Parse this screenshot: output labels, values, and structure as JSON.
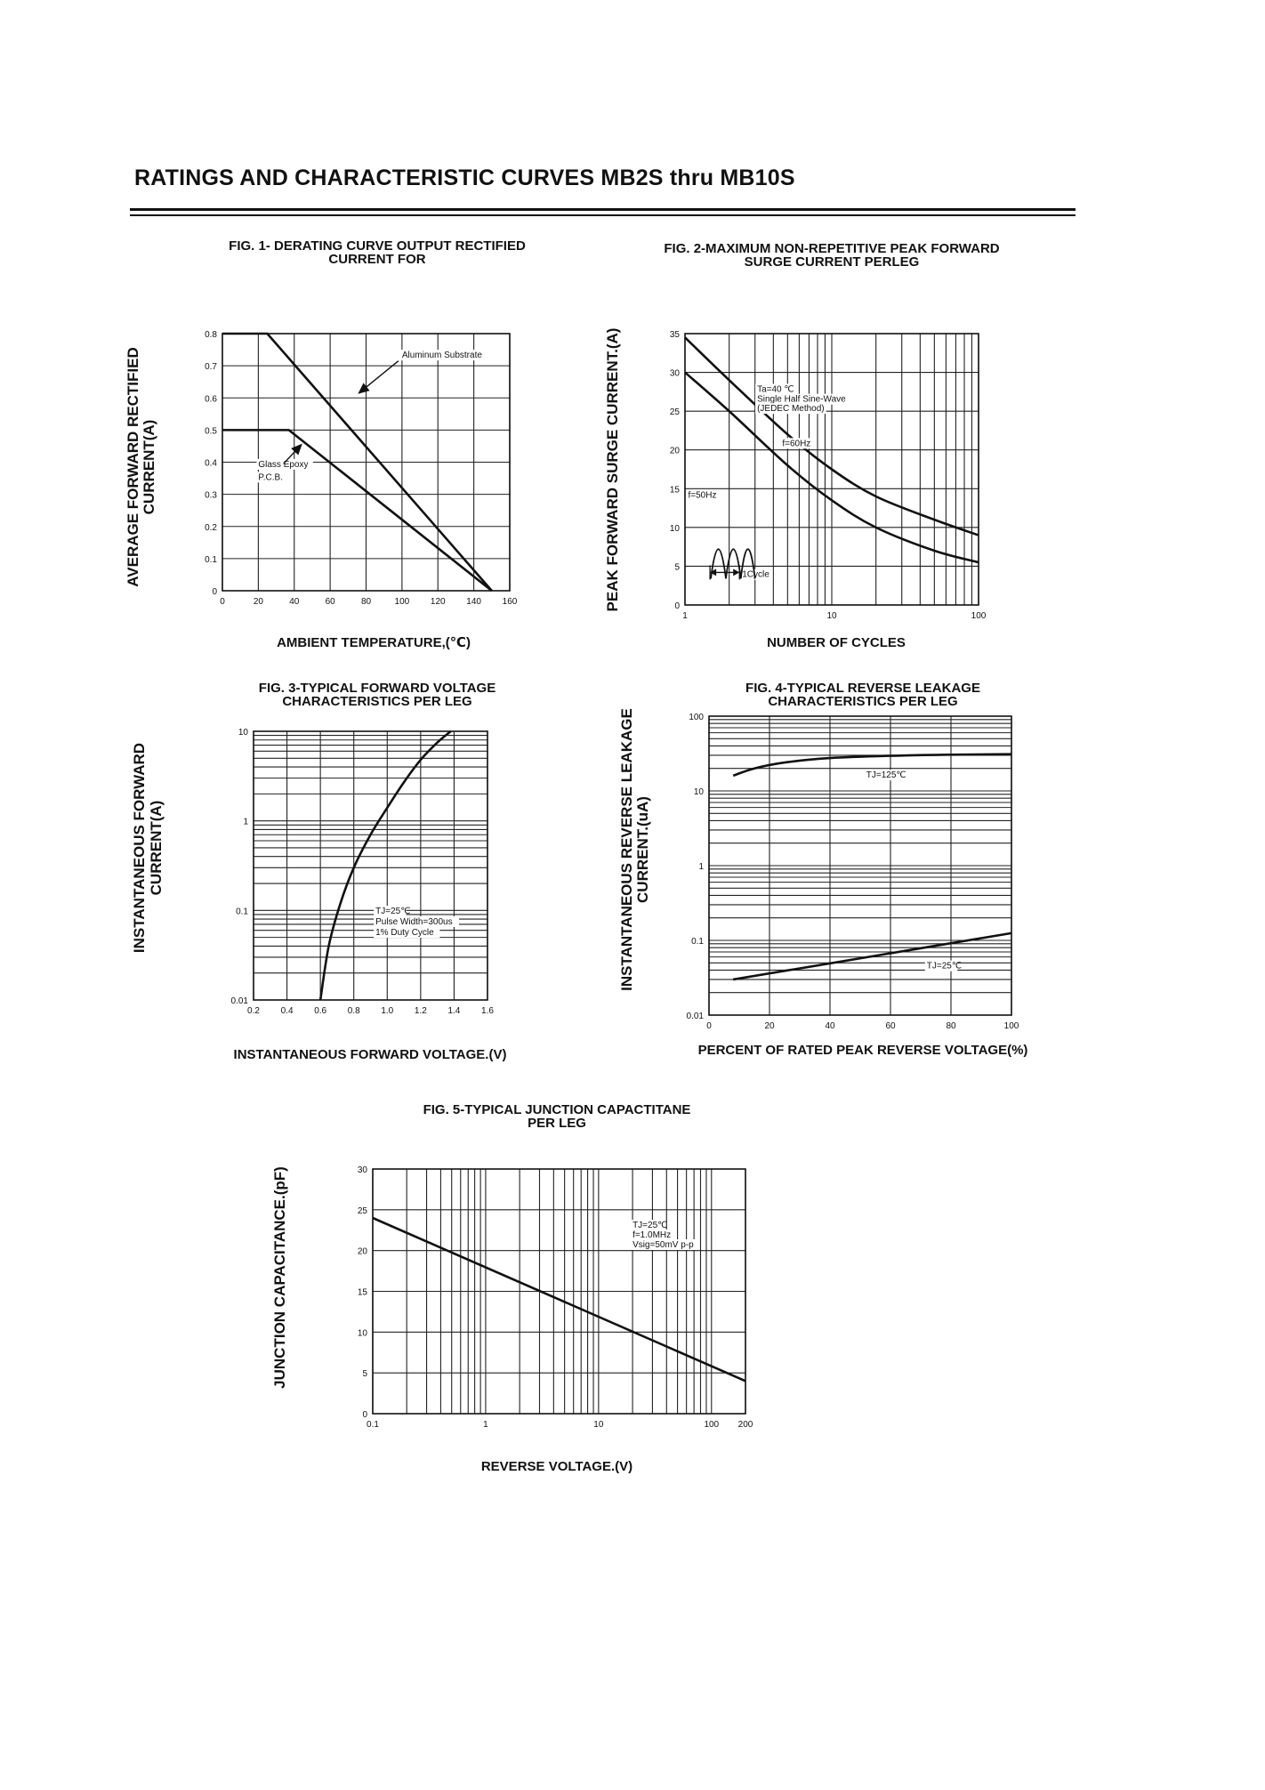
{
  "page": {
    "title": "RATINGS AND CHARACTERISTIC CURVES  MB2S  thru  MB10S"
  },
  "chart_data": [
    {
      "id": "fig1",
      "type": "line",
      "title": [
        "FIG. 1- DERATING CURVE OUTPUT RECTIFIED",
        "CURRENT FOR"
      ],
      "xlabel": "AMBIENT TEMPERATURE,(℃)",
      "ylabel": [
        "AVERAGE FORWARD RECTIFIED",
        "CURRENT(A)"
      ],
      "x_ticks": [
        {
          "v": 0,
          "t": "0"
        },
        {
          "v": 20,
          "t": "20"
        },
        {
          "v": 40,
          "t": "40"
        },
        {
          "v": 60,
          "t": "60"
        },
        {
          "v": 80,
          "t": "80"
        },
        {
          "v": 100,
          "t": "100"
        },
        {
          "v": 120,
          "t": "120"
        },
        {
          "v": 140,
          "t": "140"
        },
        {
          "v": 160,
          "t": "160"
        }
      ],
      "y_ticks": [
        {
          "v": 0,
          "t": "0"
        },
        {
          "v": 0.1,
          "t": "0.1"
        },
        {
          "v": 0.2,
          "t": "0.2"
        },
        {
          "v": 0.3,
          "t": "0.3"
        },
        {
          "v": 0.4,
          "t": "0.4"
        },
        {
          "v": 0.5,
          "t": "0.5"
        },
        {
          "v": 0.6,
          "t": "0.6"
        },
        {
          "v": 0.7,
          "t": "0.7"
        },
        {
          "v": 0.8,
          "t": "0.8"
        }
      ],
      "xlim": [
        0,
        160
      ],
      "ylim": [
        0,
        0.8
      ],
      "grid": true,
      "series": [
        {
          "x": [
            0,
            25,
            150
          ],
          "y": [
            0.8,
            0.8,
            0
          ]
        },
        {
          "x": [
            0,
            37,
            150
          ],
          "y": [
            0.5,
            0.5,
            0
          ]
        }
      ],
      "annotations": [
        {
          "text": "Aluminum Substrate",
          "x": 100,
          "y": 0.725
        },
        {
          "text": "Glass Epoxy",
          "x": 20,
          "y": 0.385
        },
        {
          "text": "P.C.B.",
          "x": 20,
          "y": 0.345
        }
      ]
    },
    {
      "id": "fig2",
      "type": "line",
      "title": [
        "FIG. 2-MAXIMUM NON-REPETITIVE PEAK FORWARD",
        "SURGE CURRENT PERLEG"
      ],
      "xlabel": "NUMBER OF CYCLES",
      "ylabel": [
        "PEAK  FORWARD SURGE CURRENT.(A)"
      ],
      "x_scale": "log",
      "x_ticks": [
        {
          "v": 1,
          "t": "1"
        },
        {
          "v": 10,
          "t": "10"
        },
        {
          "v": 100,
          "t": "100"
        }
      ],
      "y_ticks": [
        {
          "v": 0,
          "t": "0"
        },
        {
          "v": 5,
          "t": "5"
        },
        {
          "v": 10,
          "t": "10"
        },
        {
          "v": 15,
          "t": "15"
        },
        {
          "v": 20,
          "t": "20"
        },
        {
          "v": 25,
          "t": "25"
        },
        {
          "v": 30,
          "t": "30"
        },
        {
          "v": 35,
          "t": "35"
        }
      ],
      "xlim": [
        1,
        100
      ],
      "ylim": [
        0,
        35
      ],
      "grid": true,
      "series": [
        {
          "x": [
            1,
            2,
            5,
            10,
            20,
            50,
            100
          ],
          "y": [
            34.5,
            29,
            22,
            17.5,
            14,
            11,
            9
          ]
        },
        {
          "x": [
            1,
            2,
            5,
            10,
            20,
            50,
            100
          ],
          "y": [
            30,
            25,
            18,
            13.5,
            10,
            7,
            5.5
          ]
        }
      ],
      "annotations": [
        {
          "text": "Ta=40 ℃",
          "x": 3.1,
          "y": 27.5
        },
        {
          "text": "Single Half Sine-Wave",
          "x": 3.1,
          "y": 26.2
        },
        {
          "text": "(JEDEC Method)",
          "x": 3.1,
          "y": 25.0
        },
        {
          "text": "f=60Hz",
          "x": 4.6,
          "y": 20.5
        },
        {
          "text": "f=50Hz",
          "x": 1.05,
          "y": 13.8
        },
        {
          "text": "1Cycle",
          "x": 2.45,
          "y": 3.6
        }
      ]
    },
    {
      "id": "fig3",
      "type": "line",
      "title": [
        "FIG. 3-TYPICAL FORWARD VOLTAGE",
        "CHARACTERISTICS PER LEG"
      ],
      "xlabel": "INSTANTANEOUS FORWARD VOLTAGE.(V)",
      "ylabel": [
        "INSTANTANEOUS FORWARD",
        "CURRENT(A)"
      ],
      "y_scale": "log",
      "x_ticks": [
        {
          "v": 0.2,
          "t": "0.2"
        },
        {
          "v": 0.4,
          "t": "0.4"
        },
        {
          "v": 0.6,
          "t": "0.6"
        },
        {
          "v": 0.8,
          "t": "0.8"
        },
        {
          "v": 1.0,
          "t": "1.0"
        },
        {
          "v": 1.2,
          "t": "1.2"
        },
        {
          "v": 1.4,
          "t": "1.4"
        },
        {
          "v": 1.6,
          "t": "1.6"
        }
      ],
      "y_ticks": [
        {
          "v": 0.01,
          "t": "0.01"
        },
        {
          "v": 0.1,
          "t": "0.1"
        },
        {
          "v": 1,
          "t": "1"
        },
        {
          "v": 10,
          "t": "10"
        }
      ],
      "xlim": [
        0.2,
        1.6
      ],
      "ylim": [
        0.01,
        10
      ],
      "grid": true,
      "series": [
        {
          "x": [
            0.6,
            0.65,
            0.72,
            0.8,
            0.9,
            1.0,
            1.1,
            1.2,
            1.3,
            1.38
          ],
          "y": [
            0.01,
            0.04,
            0.12,
            0.3,
            0.7,
            1.4,
            2.7,
            4.8,
            7.5,
            10
          ]
        }
      ],
      "annotations": [
        {
          "text": "TJ=25℃",
          "x": 0.93,
          "y": 0.092
        },
        {
          "text": "Pulse Width=300us",
          "x": 0.93,
          "y": 0.07
        },
        {
          "text": "1% Duty Cycle",
          "x": 0.93,
          "y": 0.053
        }
      ]
    },
    {
      "id": "fig4",
      "type": "line",
      "title": [
        "FIG. 4-TYPICAL REVERSE LEAKAGE",
        "CHARACTERISTICS PER LEG"
      ],
      "xlabel": "PERCENT OF RATED PEAK REVERSE VOLTAGE(%)",
      "ylabel": [
        "INSTANTANEOUS REVERSE LEAKAGE",
        "CURRENT.(uA)"
      ],
      "y_scale": "log",
      "x_ticks": [
        {
          "v": 0,
          "t": "0"
        },
        {
          "v": 20,
          "t": "20"
        },
        {
          "v": 40,
          "t": "40"
        },
        {
          "v": 60,
          "t": "60"
        },
        {
          "v": 80,
          "t": "80"
        },
        {
          "v": 100,
          "t": "100"
        }
      ],
      "y_ticks": [
        {
          "v": 0.01,
          "t": "0.01"
        },
        {
          "v": 0.1,
          "t": "0.1"
        },
        {
          "v": 1,
          "t": "1"
        },
        {
          "v": 10,
          "t": "10"
        },
        {
          "v": 100,
          "t": "100"
        }
      ],
      "xlim": [
        0,
        100
      ],
      "ylim": [
        0.01,
        100
      ],
      "grid": true,
      "series": [
        {
          "x": [
            8,
            15,
            25,
            40,
            60,
            80,
            100
          ],
          "y": [
            16,
            20,
            24,
            27.5,
            29.5,
            30.5,
            31
          ]
        },
        {
          "x": [
            8,
            100
          ],
          "y": [
            0.03,
            0.125
          ]
        }
      ],
      "annotations": [
        {
          "text": "TJ=125℃",
          "x": 52,
          "y": 15
        },
        {
          "text": "TJ=25℃",
          "x": 72,
          "y": 0.042
        }
      ]
    },
    {
      "id": "fig5",
      "type": "line",
      "title": [
        "FIG. 5-TYPICAL JUNCTION CAPACTITANE",
        "PER LEG"
      ],
      "xlabel": "REVERSE VOLTAGE.(V)",
      "ylabel": [
        "JUNCTION CAPACITANCE.(pF)"
      ],
      "x_scale": "log",
      "x_ticks": [
        {
          "v": 0.1,
          "t": "0.1"
        },
        {
          "v": 1,
          "t": "1"
        },
        {
          "v": 10,
          "t": "10"
        },
        {
          "v": 100,
          "t": "100"
        },
        {
          "v": 200,
          "t": "200"
        }
      ],
      "y_ticks": [
        {
          "v": 0,
          "t": "0"
        },
        {
          "v": 5,
          "t": "5"
        },
        {
          "v": 10,
          "t": "10"
        },
        {
          "v": 15,
          "t": "15"
        },
        {
          "v": 20,
          "t": "20"
        },
        {
          "v": 25,
          "t": "25"
        },
        {
          "v": 30,
          "t": "30"
        }
      ],
      "xlim": [
        0.1,
        200
      ],
      "ylim": [
        0,
        30
      ],
      "grid": true,
      "series": [
        {
          "x": [
            0.1,
            200
          ],
          "y": [
            24,
            4
          ]
        }
      ],
      "annotations": [
        {
          "text": "TJ=25℃",
          "x": 20,
          "y": 22.8
        },
        {
          "text": "f=1.0MHz",
          "x": 20,
          "y": 21.6
        },
        {
          "text": "Vsig=50mV p-p",
          "x": 20,
          "y": 20.4
        }
      ]
    }
  ]
}
